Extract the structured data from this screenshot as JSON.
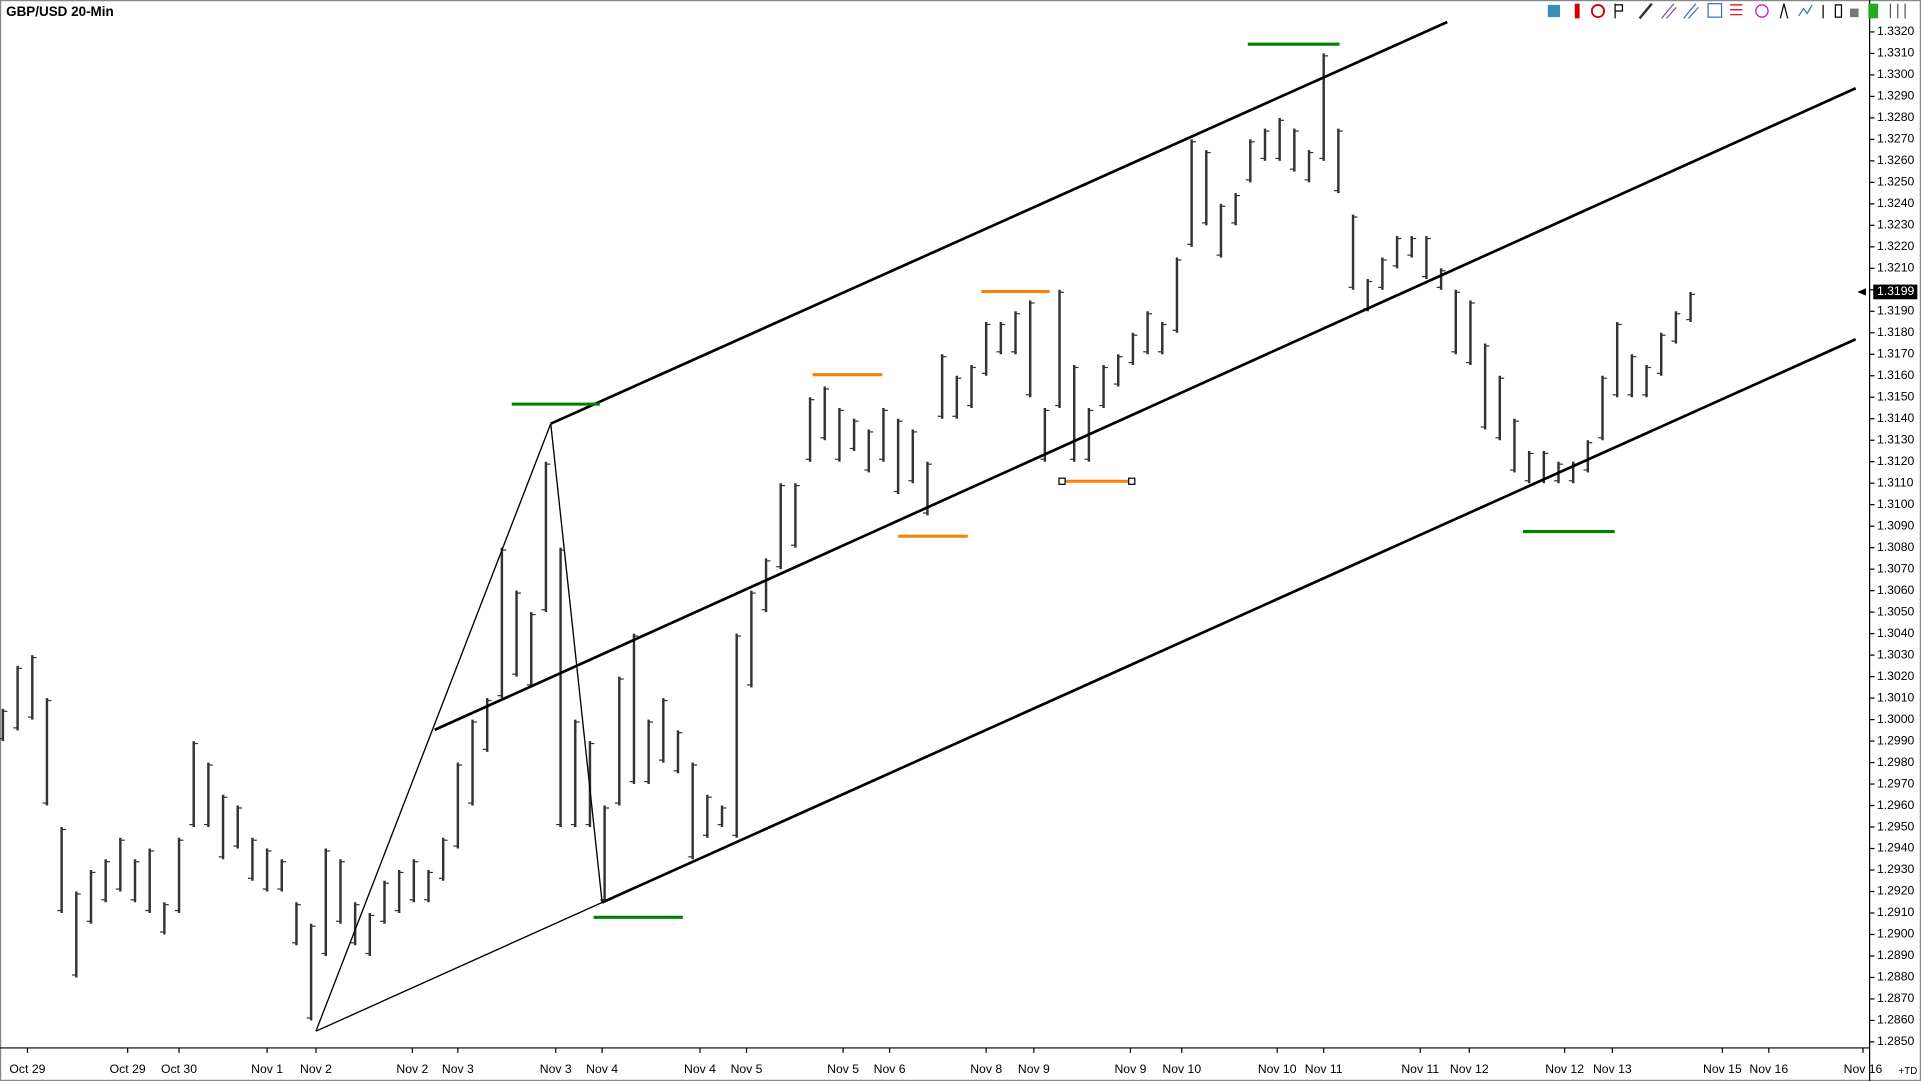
{
  "chart_data": {
    "type": "ohlc",
    "title": "GBP/USD 20-Min",
    "corner_label": "+TD",
    "bar_color": "#333333",
    "highs": [
      1.3005,
      1.3025,
      1.303,
      1.301,
      1.295,
      1.292,
      1.293,
      1.2935,
      1.2945,
      1.2935,
      1.294,
      1.2915,
      1.2945,
      1.299,
      1.298,
      1.2965,
      1.296,
      1.2945,
      1.294,
      1.2935,
      1.2915,
      1.2905,
      1.294,
      1.2935,
      1.2915,
      1.291,
      1.2925,
      1.293,
      1.2935,
      1.293,
      1.2945,
      1.298,
      1.3,
      1.301,
      1.308,
      1.306,
      1.305,
      1.312,
      1.308,
      1.3,
      1.299,
      1.296,
      1.302,
      1.304,
      1.3,
      1.301,
      1.2995,
      1.298,
      1.2965,
      1.296,
      1.304,
      1.306,
      1.3075,
      1.311,
      1.311,
      1.315,
      1.3155,
      1.3145,
      1.314,
      1.3135,
      1.3145,
      1.314,
      1.3135,
      1.312,
      1.317,
      1.316,
      1.3165,
      1.3185,
      1.3185,
      1.319,
      1.3195,
      1.3145,
      1.32,
      1.3165,
      1.3145,
      1.3165,
      1.317,
      1.318,
      1.319,
      1.3185,
      1.3215,
      1.327,
      1.3265,
      1.324,
      1.3245,
      1.327,
      1.3275,
      1.328,
      1.3275,
      1.3265,
      1.331,
      1.3275,
      1.3235,
      1.3205,
      1.3215,
      1.3225,
      1.3225,
      1.3225,
      1.321,
      1.32,
      1.3195,
      1.3175,
      1.316,
      1.314,
      1.3125,
      1.3125,
      1.312,
      1.312,
      1.313,
      1.316,
      1.3185,
      1.317,
      1.3165,
      1.318,
      1.319,
      1.3199
    ],
    "lows": [
      1.299,
      1.2995,
      1.3,
      1.296,
      1.291,
      1.288,
      1.2905,
      1.2915,
      1.292,
      1.2915,
      1.291,
      1.29,
      1.291,
      1.295,
      1.295,
      1.2935,
      1.294,
      1.2925,
      1.292,
      1.292,
      1.2895,
      1.286,
      1.289,
      1.2905,
      1.2895,
      1.289,
      1.2905,
      1.291,
      1.2915,
      1.2915,
      1.2925,
      1.294,
      1.296,
      1.2985,
      1.301,
      1.302,
      1.3015,
      1.305,
      1.295,
      1.295,
      1.295,
      1.2915,
      1.296,
      1.297,
      1.297,
      1.298,
      1.2975,
      1.2935,
      1.2945,
      1.295,
      1.2945,
      1.3015,
      1.305,
      1.307,
      1.308,
      1.312,
      1.313,
      1.312,
      1.3125,
      1.3115,
      1.312,
      1.3105,
      1.311,
      1.3095,
      1.314,
      1.314,
      1.3145,
      1.316,
      1.317,
      1.317,
      1.315,
      1.312,
      1.3145,
      1.312,
      1.312,
      1.3145,
      1.3155,
      1.3165,
      1.317,
      1.317,
      1.318,
      1.322,
      1.323,
      1.3215,
      1.323,
      1.325,
      1.326,
      1.326,
      1.3255,
      1.325,
      1.326,
      1.3245,
      1.32,
      1.319,
      1.32,
      1.321,
      1.3215,
      1.3205,
      1.32,
      1.317,
      1.3165,
      1.3135,
      1.313,
      1.3115,
      1.311,
      1.311,
      1.311,
      1.311,
      1.3115,
      1.313,
      1.315,
      1.315,
      1.315,
      1.316,
      1.3175,
      1.3185
    ],
    "xlim": [
      -0.2,
      127.2
    ],
    "xticks": [
      {
        "value": 1.67,
        "label": "Oct 29"
      },
      {
        "value": 8.5,
        "label": "Oct 29"
      },
      {
        "value": 12,
        "label": "Oct 30"
      },
      {
        "value": 18,
        "label": "Nov 1"
      },
      {
        "value": 21.33,
        "label": "Nov 2"
      },
      {
        "value": 27.9,
        "label": "Nov 2"
      },
      {
        "value": 31,
        "label": "Nov 3"
      },
      {
        "value": 37.67,
        "label": "Nov 3"
      },
      {
        "value": 40.83,
        "label": "Nov 4"
      },
      {
        "value": 47.5,
        "label": "Nov 4"
      },
      {
        "value": 50.67,
        "label": "Nov 5"
      },
      {
        "value": 57.25,
        "label": "Nov 5"
      },
      {
        "value": 60.42,
        "label": "Nov 6"
      },
      {
        "value": 67,
        "label": "Nov 8"
      },
      {
        "value": 70.25,
        "label": "Nov 9"
      },
      {
        "value": 76.83,
        "label": "Nov 9"
      },
      {
        "value": 80.33,
        "label": "Nov 10"
      },
      {
        "value": 86.83,
        "label": "Nov 10"
      },
      {
        "value": 90,
        "label": "Nov 11"
      },
      {
        "value": 96.58,
        "label": "Nov 11"
      },
      {
        "value": 99.92,
        "label": "Nov 12"
      },
      {
        "value": 106.42,
        "label": "Nov 12"
      },
      {
        "value": 109.67,
        "label": "Nov 13"
      },
      {
        "value": 117.17,
        "label": "Nov 15"
      },
      {
        "value": 120.33,
        "label": "Nov 16"
      },
      {
        "value": 126.75,
        "label": "Nov 16"
      }
    ],
    "ylim": [
      1.28472,
      1.33246
    ],
    "yticks": [
      {
        "value": 1.285,
        "label": "1.2850"
      },
      {
        "value": 1.286,
        "label": "1.2860"
      },
      {
        "value": 1.287,
        "label": "1.2870"
      },
      {
        "value": 1.288,
        "label": "1.2880"
      },
      {
        "value": 1.289,
        "label": "1.2890"
      },
      {
        "value": 1.29,
        "label": "1.2900"
      },
      {
        "value": 1.291,
        "label": "1.2910"
      },
      {
        "value": 1.292,
        "label": "1.2920"
      },
      {
        "value": 1.293,
        "label": "1.2930"
      },
      {
        "value": 1.294,
        "label": "1.2940"
      },
      {
        "value": 1.295,
        "label": "1.2950"
      },
      {
        "value": 1.296,
        "label": "1.2960"
      },
      {
        "value": 1.297,
        "label": "1.2970"
      },
      {
        "value": 1.298,
        "label": "1.2980"
      },
      {
        "value": 1.299,
        "label": "1.2990"
      },
      {
        "value": 1.3,
        "label": "1.3000"
      },
      {
        "value": 1.301,
        "label": "1.3010"
      },
      {
        "value": 1.302,
        "label": "1.3020"
      },
      {
        "value": 1.303,
        "label": "1.3030"
      },
      {
        "value": 1.304,
        "label": "1.3040"
      },
      {
        "value": 1.305,
        "label": "1.3050"
      },
      {
        "value": 1.306,
        "label": "1.3060"
      },
      {
        "value": 1.307,
        "label": "1.3070"
      },
      {
        "value": 1.308,
        "label": "1.3080"
      },
      {
        "value": 1.309,
        "label": "1.3090"
      },
      {
        "value": 1.31,
        "label": "1.3100"
      },
      {
        "value": 1.311,
        "label": "1.3110"
      },
      {
        "value": 1.312,
        "label": "1.3120"
      },
      {
        "value": 1.313,
        "label": "1.3130"
      },
      {
        "value": 1.314,
        "label": "1.3140"
      },
      {
        "value": 1.315,
        "label": "1.3150"
      },
      {
        "value": 1.316,
        "label": "1.3160"
      },
      {
        "value": 1.317,
        "label": "1.3170"
      },
      {
        "value": 1.318,
        "label": "1.3180"
      },
      {
        "value": 1.319,
        "label": "1.3190"
      },
      {
        "value": 1.32,
        "label": "1.3200"
      },
      {
        "value": 1.321,
        "label": "1.3210"
      },
      {
        "value": 1.322,
        "label": "1.3220"
      },
      {
        "value": 1.323,
        "label": "1.3230"
      },
      {
        "value": 1.324,
        "label": "1.3240"
      },
      {
        "value": 1.325,
        "label": "1.3250"
      },
      {
        "value": 1.326,
        "label": "1.3260"
      },
      {
        "value": 1.327,
        "label": "1.3270"
      },
      {
        "value": 1.328,
        "label": "1.3280"
      },
      {
        "value": 1.329,
        "label": "1.3290"
      },
      {
        "value": 1.33,
        "label": "1.3300"
      },
      {
        "value": 1.331,
        "label": "1.3310"
      },
      {
        "value": 1.332,
        "label": "1.3320"
      }
    ],
    "last_price": {
      "value": 1.3199,
      "label": "1.3199"
    },
    "trendlines": [
      {
        "x": [
          21.33,
          37.33
        ],
        "y": [
          1.2855,
          1.31377
        ],
        "width": 1
      },
      {
        "x": [
          37.33,
          40.83
        ],
        "y": [
          1.31377,
          1.29149
        ],
        "width": 1
      },
      {
        "x": [
          21.33,
          40.83
        ],
        "y": [
          1.2855,
          1.29149
        ],
        "width": 1
      },
      {
        "x": [
          37.33,
          98.42
        ],
        "y": [
          1.31377,
          1.33246
        ],
        "width": 2
      },
      {
        "x": [
          29.42,
          126.25
        ],
        "y": [
          1.29952,
          1.32938
        ],
        "width": 2
      },
      {
        "x": [
          40.83,
          126.25
        ],
        "y": [
          1.29149,
          1.3177
        ],
        "width": 2
      }
    ],
    "levels": [
      {
        "x": [
          34.67,
          40.67
        ],
        "y": 1.31468,
        "color": "#008000"
      },
      {
        "x": [
          84.83,
          91.08
        ],
        "y": 1.33143,
        "color": "#008000"
      },
      {
        "x": [
          40.25,
          46.33
        ],
        "y": 1.2908,
        "color": "#008000"
      },
      {
        "x": [
          103.58,
          109.83
        ],
        "y": 1.30875,
        "color": "#008000"
      },
      {
        "x": [
          55.17,
          59.92
        ],
        "y": 1.31605,
        "color": "#ff8000"
      },
      {
        "x": [
          66.67,
          71.33
        ],
        "y": 1.31992,
        "color": "#ff8000"
      },
      {
        "x": [
          61,
          65.75
        ],
        "y": 1.30853,
        "color": "#ff8000"
      },
      {
        "x": [
          72.17,
          76.92
        ],
        "y": 1.31109,
        "color": "#ff8000",
        "handles": true
      }
    ]
  }
}
